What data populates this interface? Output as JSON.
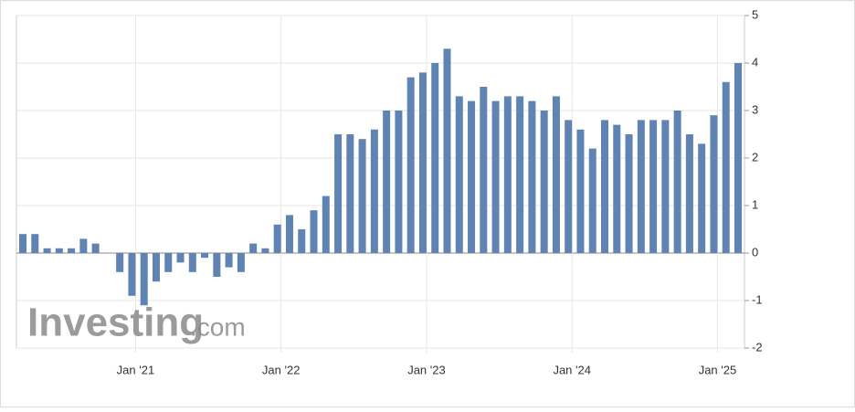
{
  "chart_data": {
    "type": "bar",
    "watermark": "Investing",
    "watermark_suffix": ".com",
    "categories": [
      null,
      null,
      null,
      null,
      null,
      null,
      null,
      null,
      null,
      "Jan '21",
      null,
      null,
      null,
      null,
      null,
      null,
      null,
      null,
      null,
      null,
      null,
      "Jan '22",
      null,
      null,
      null,
      null,
      null,
      null,
      null,
      null,
      null,
      null,
      null,
      "Jan '23",
      null,
      null,
      null,
      null,
      null,
      null,
      null,
      null,
      null,
      null,
      null,
      "Jan '24",
      null,
      null,
      null,
      null,
      null,
      null,
      null,
      null,
      null,
      null,
      null,
      "Jan '25",
      null,
      null
    ],
    "values": [
      0.4,
      0.4,
      0.1,
      0.1,
      0.1,
      0.3,
      0.2,
      0,
      -0.4,
      -0.9,
      -1.1,
      -0.6,
      -0.4,
      -0.2,
      -0.4,
      -0.1,
      -0.5,
      -0.3,
      -0.4,
      0.2,
      0.1,
      0.6,
      0.8,
      0.5,
      0.9,
      1.2,
      2.5,
      2.5,
      2.4,
      2.6,
      3.0,
      3.0,
      3.7,
      3.8,
      4.0,
      4.3,
      3.3,
      3.2,
      3.5,
      3.2,
      3.3,
      3.3,
      3.2,
      3.0,
      3.3,
      2.8,
      2.6,
      2.2,
      2.8,
      2.7,
      2.5,
      2.8,
      2.8,
      2.8,
      3.0,
      2.5,
      2.3,
      2.9,
      3.6,
      4.0
    ],
    "color": "#5f83b2",
    "ylim": [
      -2,
      5
    ],
    "yticks": [
      -2,
      -1,
      0,
      1,
      2,
      3,
      4,
      5
    ],
    "grid": true
  }
}
